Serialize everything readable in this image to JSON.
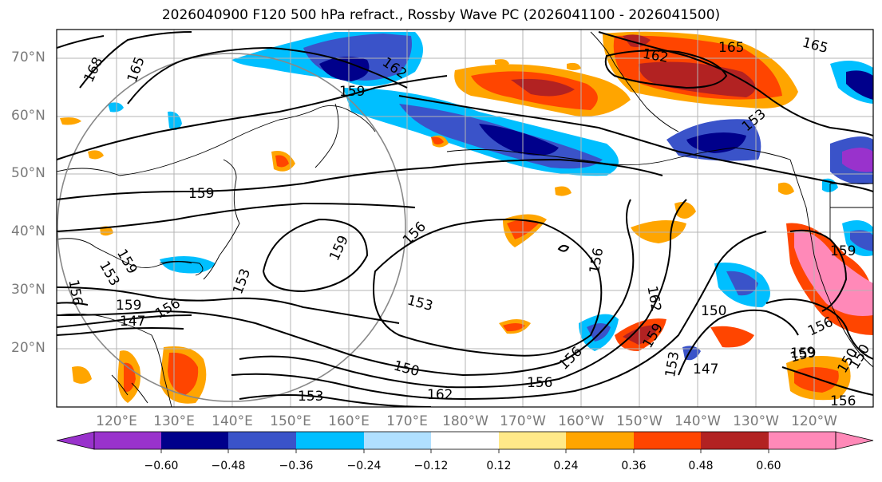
{
  "title": "2026040900 F120 500 hPa refract., Rossby Wave PC (2026041100 - 2026041500)",
  "lat_labels": [
    "70°N",
    "60°N",
    "50°N",
    "40°N",
    "30°N",
    "20°N"
  ],
  "lon_labels": [
    "120°E",
    "130°E",
    "140°E",
    "150°E",
    "160°E",
    "170°E",
    "180°W",
    "170°W",
    "160°W",
    "150°W",
    "140°W",
    "130°W",
    "120°W"
  ],
  "colorbar": {
    "colors": [
      "#9932cc",
      "#00008b",
      "#3a53c9",
      "#00bfff",
      "#b0e0ff",
      "#ffffff",
      "#ffe989",
      "#ffa500",
      "#ff4500",
      "#b22222",
      "#ff89b8"
    ],
    "tick_labels": [
      "−0.60",
      "−0.48",
      "−0.36",
      "−0.24",
      "−0.12",
      "0.12",
      "0.24",
      "0.36",
      "0.48",
      "0.60"
    ]
  },
  "contour_labels": [
    "168",
    "165",
    "162",
    "159",
    "162",
    "165",
    "159",
    "156",
    "159",
    "156",
    "153",
    "153",
    "150",
    "159",
    "147",
    "159",
    "153",
    "150",
    "147",
    "150",
    "159",
    "162",
    "153",
    "156",
    "153",
    "159",
    "156",
    "150",
    "156",
    "159",
    "162",
    "156",
    "165",
    "159",
    "153",
    "156",
    "156"
  ]
}
